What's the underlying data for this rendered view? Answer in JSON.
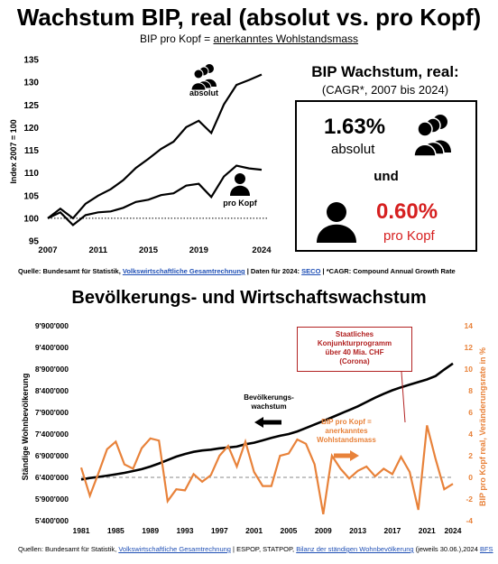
{
  "header": {
    "title": "Wachstum BIP, real (absolut vs. pro Kopf)",
    "subtitle_prefix": "BIP pro Kopf = ",
    "subtitle_link": "anerkanntes Wohlstandsmass"
  },
  "kpi": {
    "title": "BIP Wachstum, real:",
    "subtitle": "(CAGR*, 2007 bis 2024)",
    "absolut_value": "1.63%",
    "absolut_label": "absolut",
    "connector": "und",
    "prokopf_value": "0.60%",
    "prokopf_label": "pro Kopf",
    "prokopf_color": "#d62020"
  },
  "source1": {
    "prefix": "Quelle: ",
    "bold_a": "Bundesamt für Statistik, ",
    "link_a": "Volkswirtschaftliche Gesamtrechnung",
    "mid": " | Daten für 2024: ",
    "link_b": "SECO",
    "suffix": " | *CAGR: Compound Annual Growth Rate"
  },
  "section2_title": "Bevölkerungs- und Wirtschaftswachstum",
  "annotations": {
    "stimulus": "Staatliches Konjunkturprogramm über 40 Mia. CHF (Corona)",
    "stimulus_lines": [
      "Staatliches",
      "Konjunkturprogramm",
      "über 40 Mia. CHF",
      "(Corona)"
    ],
    "pop_label_lines": [
      "Bevölkerungs-",
      "wachstum"
    ],
    "gdp_label_lines": [
      "BIP pro Kopf =",
      "anerkanntes",
      "Wohlstandsmass"
    ]
  },
  "source2": {
    "prefix": "Quellen: Bundesamt für Statistik, ",
    "link_a": "Volkswirtschaftliche Gesamtrechnung",
    "mid": " | ESPOP, STATPOP, ",
    "link_b": "Bilanz der ständigen Wohnbevölkerung",
    "mid2": " (jeweils 30.06.),2024 ",
    "link_c": "BFS"
  },
  "icons": [
    "people-group-icon",
    "person-icon"
  ],
  "chart_data": [
    {
      "type": "line",
      "title": "",
      "ylabel": "Index 2007 = 100",
      "xlabel": "",
      "ylim": [
        95,
        135
      ],
      "yticks": [
        95,
        100,
        105,
        110,
        115,
        120,
        125,
        130,
        135
      ],
      "xticks": [
        2007,
        2011,
        2015,
        2019,
        2024
      ],
      "reference_line": 100,
      "x": [
        2007,
        2008,
        2009,
        2010,
        2011,
        2012,
        2013,
        2014,
        2015,
        2016,
        2017,
        2018,
        2019,
        2020,
        2021,
        2022,
        2023,
        2024
      ],
      "series": [
        {
          "name": "absolut",
          "color": "#000000",
          "values": [
            100,
            102.1,
            100.0,
            103.2,
            105.0,
            106.4,
            108.4,
            111.1,
            113.1,
            115.3,
            116.9,
            120.1,
            121.5,
            118.8,
            125.1,
            129.4,
            130.5,
            131.7
          ]
        },
        {
          "name": "pro Kopf",
          "color": "#000000",
          "values": [
            100,
            101.3,
            98.5,
            100.7,
            101.3,
            101.5,
            102.3,
            103.6,
            104.1,
            105.1,
            105.5,
            107.2,
            107.6,
            104.7,
            109.2,
            111.6,
            111.0,
            110.7
          ]
        }
      ]
    },
    {
      "type": "line",
      "title": "Bevölkerungs- und Wirtschaftswachstum",
      "ylabel_left": "Ständige Wohnbevölkerung",
      "ylabel_right": "BIP pro Kopf real, Veränderungsrate in %",
      "ylim_left": [
        5400000,
        9900000
      ],
      "ylim_right": [
        -4,
        14
      ],
      "yticks_left": [
        "5'400'000",
        "5'900'000",
        "6'400'000",
        "6'900'000",
        "7'400'000",
        "7'900'000",
        "8'400'000",
        "8'900'000",
        "9'400'000",
        "9'900'000"
      ],
      "yticks_right": [
        -4,
        -2,
        0,
        2,
        4,
        6,
        8,
        10,
        12,
        14
      ],
      "xticks": [
        1981,
        1985,
        1989,
        1993,
        1997,
        2001,
        2005,
        2009,
        2013,
        2017,
        2021,
        2024
      ],
      "reference_line_right": 0,
      "x": [
        1981,
        1982,
        1983,
        1984,
        1985,
        1986,
        1987,
        1988,
        1989,
        1990,
        1991,
        1992,
        1993,
        1994,
        1995,
        1996,
        1997,
        1998,
        1999,
        2000,
        2001,
        2002,
        2003,
        2004,
        2005,
        2006,
        2007,
        2008,
        2009,
        2010,
        2011,
        2012,
        2013,
        2014,
        2015,
        2016,
        2017,
        2018,
        2019,
        2020,
        2021,
        2022,
        2023,
        2024
      ],
      "series": [
        {
          "name": "Bevölkerungswachstum",
          "axis": "left",
          "color": "#000000",
          "values": [
            6350000,
            6385000,
            6410000,
            6440000,
            6470000,
            6505000,
            6545000,
            6590000,
            6650000,
            6720000,
            6800000,
            6880000,
            6940000,
            6990000,
            7020000,
            7040000,
            7070000,
            7090000,
            7110000,
            7165000,
            7200000,
            7255000,
            7310000,
            7360000,
            7400000,
            7460000,
            7540000,
            7620000,
            7700000,
            7785000,
            7870000,
            7955000,
            8040000,
            8140000,
            8240000,
            8330000,
            8410000,
            8480000,
            8540000,
            8600000,
            8660000,
            8740000,
            8890000,
            9030000
          ]
        },
        {
          "name": "BIP pro Kopf",
          "axis": "right",
          "color": "#e8823a",
          "values": [
            0.9,
            -1.7,
            0.4,
            2.6,
            3.3,
            1.2,
            0.8,
            2.7,
            3.6,
            3.4,
            -2.2,
            -1.1,
            -1.2,
            0.3,
            -0.4,
            0.2,
            2.0,
            2.9,
            1.0,
            3.3,
            0.5,
            -0.8,
            -0.8,
            2.0,
            2.2,
            3.5,
            3.1,
            1.2,
            -3.4,
            2.0,
            0.8,
            -0.1,
            0.6,
            1.0,
            0.1,
            0.8,
            0.3,
            1.9,
            0.5,
            -3.0,
            4.8,
            1.7,
            -1.1,
            -0.6
          ]
        }
      ]
    }
  ]
}
